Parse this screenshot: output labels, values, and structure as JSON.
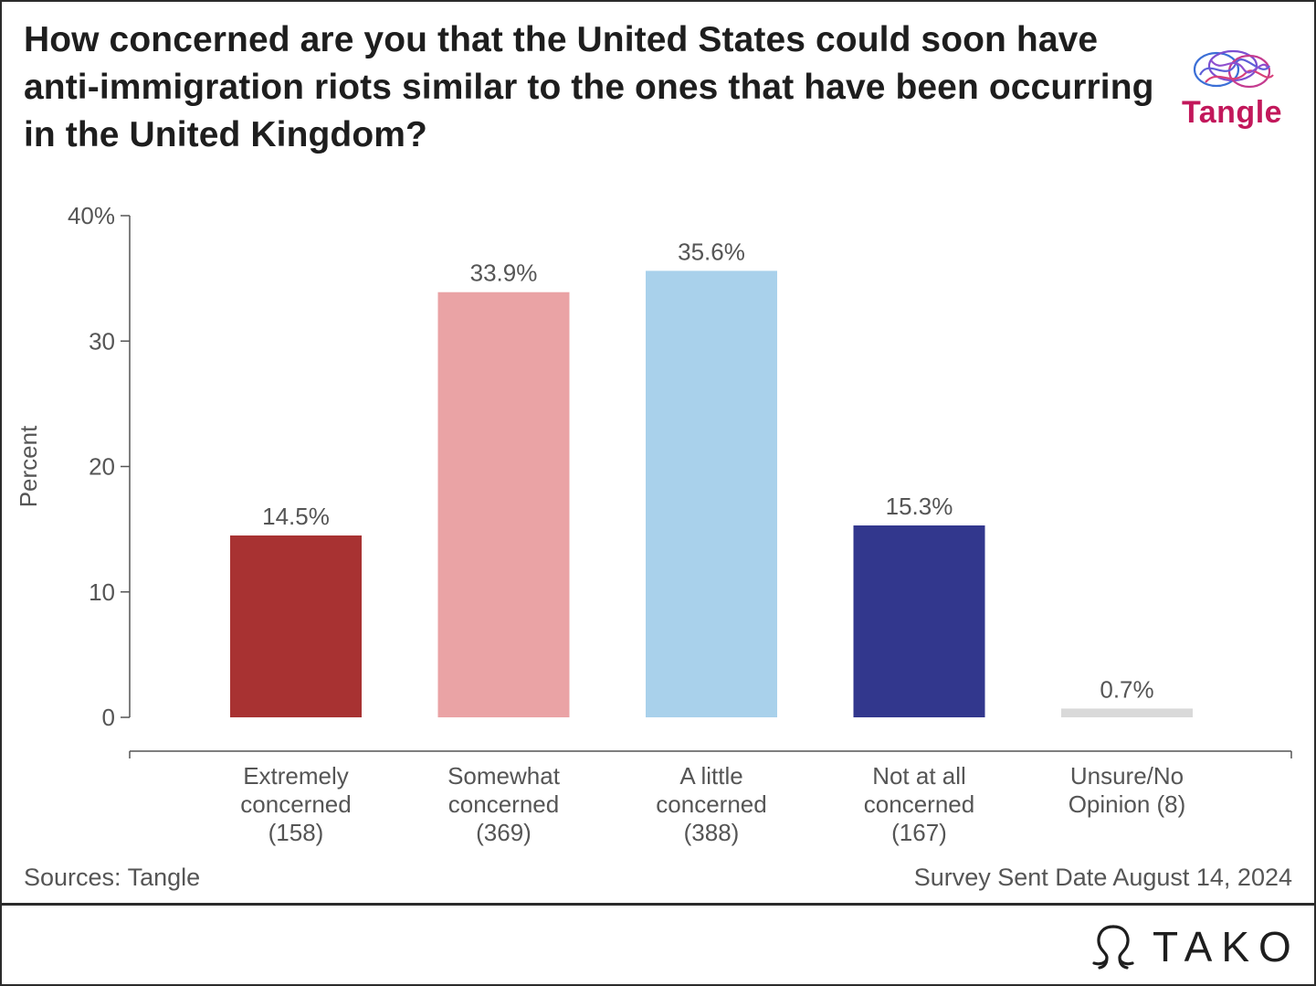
{
  "title": "How concerned are you that the United States could soon have anti-immigration riots similar to the ones that have been occurring in the United Kingdom?",
  "logo": {
    "name": "tangle-brain-logo",
    "text": "Tangle"
  },
  "footer": {
    "source": "Sources: Tangle",
    "date": "Survey Sent Date August 14, 2024",
    "brand": "TAKO"
  },
  "chart_data": {
    "type": "bar",
    "categories": [
      [
        "Extremely",
        "concerned",
        "(158)"
      ],
      [
        "Somewhat",
        "concerned",
        "(369)"
      ],
      [
        "A little",
        "concerned",
        "(388)"
      ],
      [
        "Not at all",
        "concerned",
        "(167)"
      ],
      [
        "Unsure/No",
        "Opinion (8)"
      ]
    ],
    "values": [
      14.5,
      33.9,
      35.6,
      15.3,
      0.7
    ],
    "value_labels": [
      "14.5%",
      "33.9%",
      "35.6%",
      "15.3%",
      "0.7%"
    ],
    "colors": [
      "#a83232",
      "#eaa3a5",
      "#a9d1eb",
      "#32378d",
      "#d9d9d9"
    ],
    "ylabel": "Percent",
    "ylim": [
      0,
      40
    ],
    "yticks": [
      0,
      10,
      20,
      30,
      40
    ],
    "ytick_labels": [
      "0",
      "10",
      "20",
      "30",
      "40%"
    ],
    "grid": false
  }
}
